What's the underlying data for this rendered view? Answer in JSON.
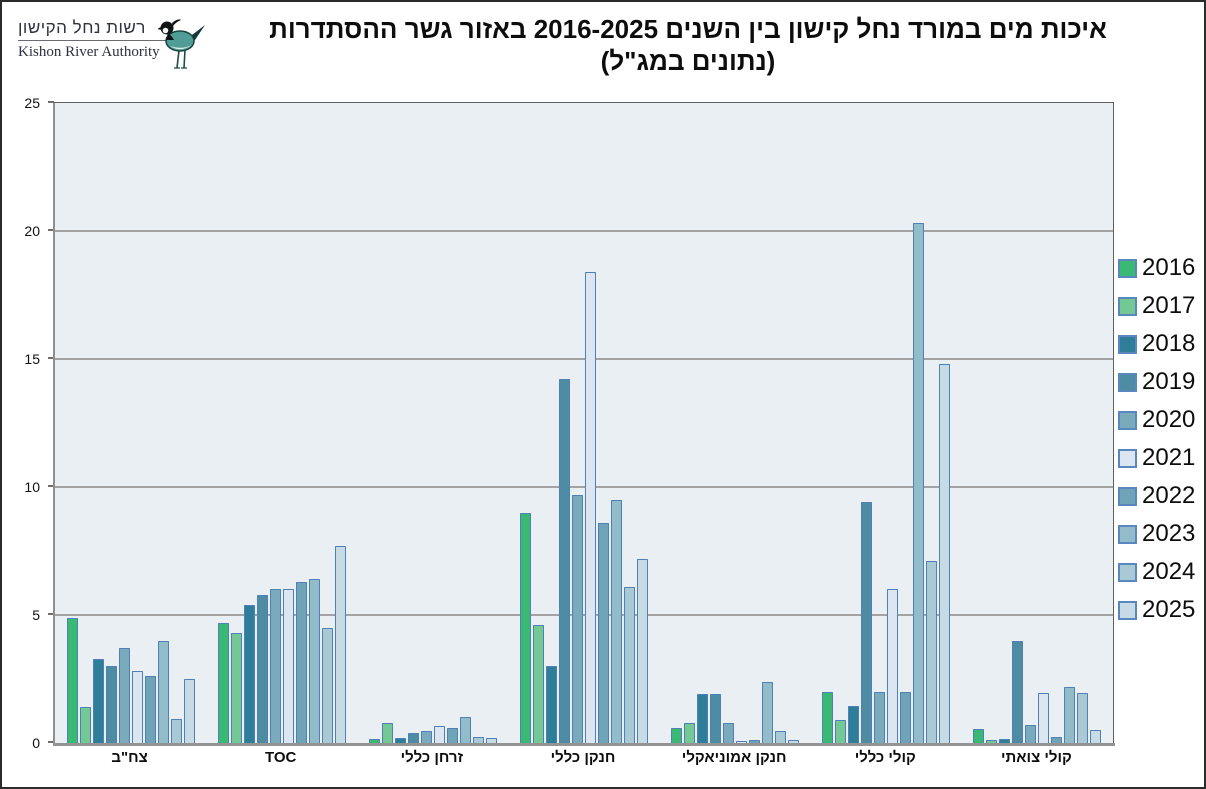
{
  "header": {
    "logo_hebrew": "רשות נחל הקישון",
    "logo_english": "Kishon River Authority",
    "title_line1": "איכות מים במורד נחל קישון בין השנים 2016-2025 באזור גשר ההסתדרות",
    "title_line2": "(נתונים במג\"ל)"
  },
  "colors": {
    "plot_background": "#e9eff3",
    "gridline": "#a3a3a3",
    "bar_border": "#4f80b8",
    "axis": "#8f8f8f"
  },
  "chart_data": {
    "type": "bar",
    "title": "איכות מים במורד נחל קישון בין השנים 2016-2025 באזור גשר ההסתדרות (נתונים במג\"ל)",
    "xlabel": "",
    "ylabel": "",
    "ylim": [
      0,
      25
    ],
    "yticks": [
      0,
      5,
      10,
      15,
      20,
      25
    ],
    "grid": true,
    "legend_position": "right",
    "categories": [
      "צח\"ב",
      "TOC",
      "זרחן כללי",
      "חנקן כללי",
      "חנקן אמוניאקלי",
      "קולי כללי",
      "קולי צואתי"
    ],
    "series": [
      {
        "name": "2016",
        "color": "#3ab975",
        "values": [
          4.9,
          4.7,
          0.15,
          9.0,
          0.6,
          2.0,
          0.55
        ]
      },
      {
        "name": "2017",
        "color": "#74c893",
        "values": [
          1.4,
          4.3,
          0.8,
          4.6,
          0.8,
          0.9,
          0.1
        ]
      },
      {
        "name": "2018",
        "color": "#2e7e9a",
        "values": [
          3.3,
          5.4,
          0.2,
          3.0,
          1.9,
          1.45,
          0.15
        ]
      },
      {
        "name": "2019",
        "color": "#4e8ca4",
        "values": [
          3.0,
          5.8,
          0.4,
          14.2,
          1.9,
          9.4,
          4.0
        ]
      },
      {
        "name": "2020",
        "color": "#79abbd",
        "values": [
          3.7,
          6.0,
          0.45,
          9.7,
          0.8,
          2.0,
          0.7
        ]
      },
      {
        "name": "2021",
        "color": "#dbe6f0",
        "values": [
          2.8,
          6.0,
          0.65,
          18.4,
          0.05,
          6.0,
          1.95
        ]
      },
      {
        "name": "2022",
        "color": "#6fa3b8",
        "values": [
          2.6,
          6.3,
          0.6,
          8.6,
          0.1,
          2.0,
          0.25
        ]
      },
      {
        "name": "2023",
        "color": "#92bcca",
        "values": [
          4.0,
          6.4,
          1.0,
          9.5,
          2.4,
          20.3,
          2.2
        ]
      },
      {
        "name": "2024",
        "color": "#a9c9d5",
        "values": [
          0.95,
          4.5,
          0.25,
          6.1,
          0.45,
          7.1,
          1.95
        ]
      },
      {
        "name": "2025",
        "color": "#c6dbe4",
        "values": [
          2.5,
          7.7,
          0.2,
          7.2,
          0.1,
          14.8,
          0.5
        ]
      }
    ]
  }
}
